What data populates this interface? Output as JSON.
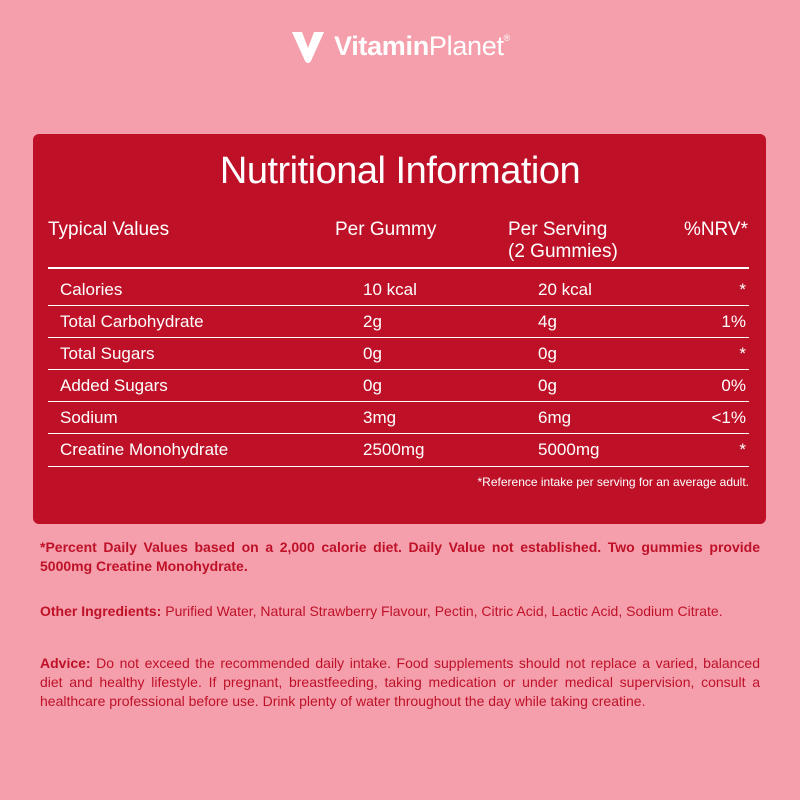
{
  "brand": {
    "bold": "Vitamin",
    "light": "Planet",
    "mark": "®"
  },
  "panel": {
    "title": "Nutritional Information",
    "headers": {
      "typical": "Typical Values",
      "per_gummy": "Per Gummy",
      "per_serving_line1": "Per Serving",
      "per_serving_line2": "(2 Gummies)",
      "nrv": "%NRV*"
    },
    "rows": [
      {
        "name": "Calories",
        "per_gummy": "10 kcal",
        "per_serving": "20 kcal",
        "nrv": "*"
      },
      {
        "name": "Total Carbohydrate",
        "per_gummy": "2g",
        "per_serving": "4g",
        "nrv": "1%"
      },
      {
        "name": "Total Sugars",
        "per_gummy": "0g",
        "per_serving": "0g",
        "nrv": "*"
      },
      {
        "name": "Added Sugars",
        "per_gummy": "0g",
        "per_serving": "0g",
        "nrv": "0%"
      },
      {
        "name": "Sodium",
        "per_gummy": "3mg",
        "per_serving": "6mg",
        "nrv": "<1%"
      },
      {
        "name": "Creatine Monohydrate",
        "per_gummy": "2500mg",
        "per_serving": "5000mg",
        "nrv": "*"
      }
    ],
    "reference_note": "*Reference intake per serving for an average adult."
  },
  "notes": {
    "daily_values": "*Percent Daily Values based on a 2,000 calorie diet. Daily Value not established. Two gummies provide 5000mg Creatine Monohydrate.",
    "ingredients_label": "Other Ingredients:",
    "ingredients_text": " Purified Water, Natural Strawberry Flavour, Pectin, Citric Acid, Lactic Acid, Sodium Citrate.",
    "advice_label": "Advice:",
    "advice_text": " Do not exceed the recommended daily intake. Food supplements should not replace a varied, balanced diet and healthy lifestyle. If pregnant, breastfeeding, taking medication or under medical supervision, consult a healthcare professional before use. Drink plenty of water throughout the day while taking creatine."
  },
  "colors": {
    "background": "#f59fac",
    "panel": "#be1128",
    "text_accent": "#be1128",
    "white": "#ffffff"
  }
}
